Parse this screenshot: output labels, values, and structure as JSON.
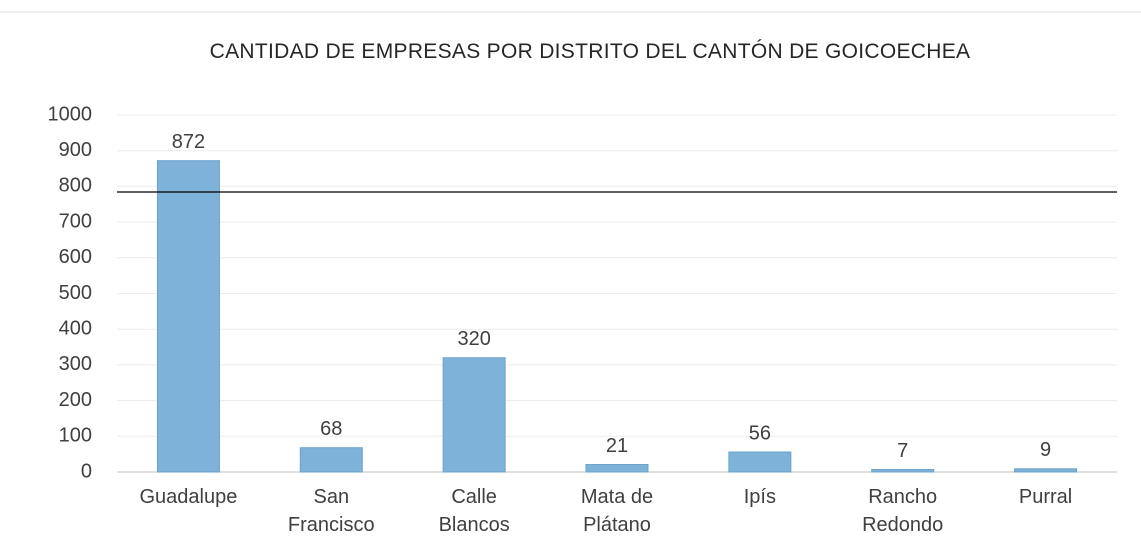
{
  "chart_data": {
    "type": "bar",
    "title": "CANTIDAD DE EMPRESAS POR DISTRITO DEL CANTÓN DE GOICOECHEA",
    "categories": [
      "Guadalupe",
      "San Francisco",
      "Calle Blancos",
      "Mata de Plátano",
      "Ipís",
      "Rancho Redondo",
      "Purral"
    ],
    "values": [
      872,
      68,
      320,
      21,
      56,
      7,
      9
    ],
    "color": "#7fb2d8",
    "ylim": [
      0,
      1000
    ],
    "yticks": [
      0,
      100,
      200,
      300,
      400,
      500,
      600,
      700,
      800,
      900,
      1000
    ],
    "grid": true
  }
}
